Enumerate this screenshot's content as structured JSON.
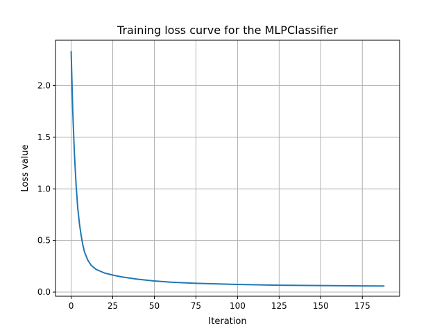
{
  "chart_data": {
    "type": "line",
    "title": "Training loss curve for the MLPClassifier",
    "xlabel": "Iteration",
    "ylabel": "Loss value",
    "xlim": [
      -9.4,
      197.4
    ],
    "ylim": [
      -0.04,
      2.44
    ],
    "grid": true,
    "legend": "none",
    "line_color": "#1f77b4",
    "grid_color": "#b0b0b0",
    "x_ticks": [
      {
        "value": 0,
        "label": "0"
      },
      {
        "value": 25,
        "label": "25"
      },
      {
        "value": 50,
        "label": "50"
      },
      {
        "value": 75,
        "label": "75"
      },
      {
        "value": 100,
        "label": "100"
      },
      {
        "value": 125,
        "label": "125"
      },
      {
        "value": 150,
        "label": "150"
      },
      {
        "value": 175,
        "label": "175"
      }
    ],
    "y_ticks": [
      {
        "value": 0.0,
        "label": "0.0"
      },
      {
        "value": 0.5,
        "label": "0.5"
      },
      {
        "value": 1.0,
        "label": "1.0"
      },
      {
        "value": 1.5,
        "label": "1.5"
      },
      {
        "value": 2.0,
        "label": "2.0"
      }
    ],
    "series": [
      {
        "x": [
          0,
          1,
          2,
          3,
          4,
          5,
          6,
          7,
          8,
          10,
          12,
          15,
          20,
          25,
          30,
          40,
          50,
          60,
          75,
          100,
          125,
          150,
          175,
          188
        ],
        "y": [
          2.33,
          1.74,
          1.33,
          1.03,
          0.81,
          0.66,
          0.55,
          0.46,
          0.39,
          0.31,
          0.26,
          0.22,
          0.185,
          0.165,
          0.148,
          0.125,
          0.108,
          0.096,
          0.085,
          0.074,
          0.067,
          0.063,
          0.06,
          0.059
        ]
      }
    ]
  }
}
